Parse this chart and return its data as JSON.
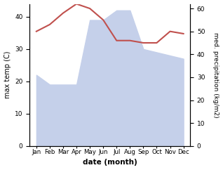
{
  "months": [
    "Jan",
    "Feb",
    "Mar",
    "Apr",
    "May",
    "Jun",
    "Jul",
    "Aug",
    "Sep",
    "Oct",
    "Nov",
    "Dec"
  ],
  "x": [
    1,
    2,
    3,
    4,
    5,
    6,
    7,
    8,
    9,
    10,
    11,
    12
  ],
  "precipitation": [
    22,
    19,
    19,
    19,
    39,
    39,
    42,
    42,
    30,
    29,
    28,
    27
  ],
  "temperature": [
    50,
    53,
    58,
    62,
    60,
    55,
    46,
    46,
    45,
    45,
    50,
    49
  ],
  "precip_fill_color": "#c5d0ea",
  "temp_color": "#c0504d",
  "xlabel": "date (month)",
  "ylabel_left": "max temp (C)",
  "ylabel_right": "med. precipitation (kg/m2)",
  "ylim_left": [
    0,
    44
  ],
  "ylim_right": [
    0,
    62
  ],
  "yticks_left": [
    0,
    10,
    20,
    30,
    40
  ],
  "yticks_right": [
    0,
    10,
    20,
    30,
    40,
    50,
    60
  ],
  "figsize": [
    3.18,
    2.42
  ],
  "dpi": 100
}
